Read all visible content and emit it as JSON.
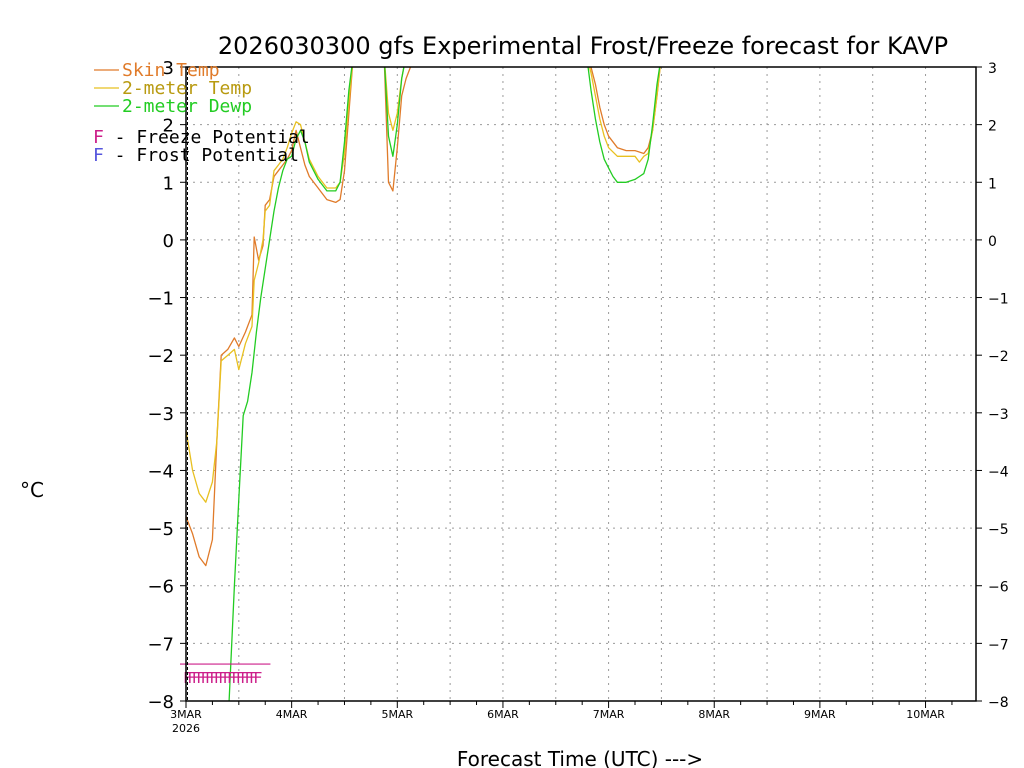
{
  "chart_data": {
    "type": "line",
    "title": "2026030300 gfs Experimental Frost/Freeze forecast for KAVP",
    "xlabel": "Forecast Time (UTC) --->",
    "ylabel": "°C",
    "ylim": [
      -8,
      3
    ],
    "yticks": [
      -8,
      -7,
      -6,
      -5,
      -4,
      -3,
      -2,
      -1,
      0,
      1,
      2,
      3
    ],
    "ytick_labels": [
      "−8",
      "−7",
      "−6",
      "−5",
      "−4",
      "−3",
      "−2",
      "−1",
      "0",
      "1",
      "2",
      "3"
    ],
    "xlim_hours": [
      0,
      180
    ],
    "xticks": [
      {
        "hour": 0,
        "label": "3MAR",
        "sublabel": "2026"
      },
      {
        "hour": 24,
        "label": "4MAR"
      },
      {
        "hour": 48,
        "label": "5MAR"
      },
      {
        "hour": 72,
        "label": "6MAR"
      },
      {
        "hour": 96,
        "label": "7MAR"
      },
      {
        "hour": 120,
        "label": "8MAR"
      },
      {
        "hour": 144,
        "label": "9MAR"
      },
      {
        "hour": 168,
        "label": "10MAR"
      }
    ],
    "grid": true,
    "legend": [
      {
        "label": "Skin Temp",
        "color": "#e07b2a"
      },
      {
        "label": "2-meter Temp",
        "color": "#e8c020"
      },
      {
        "label": "2-meter Dewp",
        "color": "#22cc22"
      }
    ],
    "markers_legend": [
      {
        "symbol": "F",
        "text": " - Freeze Potential",
        "color": "#cc1f8a"
      },
      {
        "symbol": "F",
        "text": " - Frost Potential",
        "color": "#5555dd"
      }
    ],
    "series": [
      {
        "name": "Skin Temp",
        "color": "#e07b2a",
        "points": [
          [
            0,
            -4.8
          ],
          [
            1.5,
            -5.1
          ],
          [
            3,
            -5.5
          ],
          [
            4.5,
            -5.65
          ],
          [
            6,
            -5.2
          ],
          [
            7,
            -3.5
          ],
          [
            8,
            -2.0
          ],
          [
            9.5,
            -1.9
          ],
          [
            11,
            -1.7
          ],
          [
            12,
            -1.85
          ],
          [
            13.5,
            -1.6
          ],
          [
            15,
            -1.3
          ],
          [
            15.5,
            0.05
          ],
          [
            16.5,
            -0.35
          ],
          [
            17.5,
            -0.1
          ],
          [
            18,
            0.6
          ],
          [
            19,
            0.7
          ],
          [
            20,
            1.1
          ],
          [
            21,
            1.2
          ],
          [
            22,
            1.3
          ],
          [
            23,
            1.4
          ],
          [
            24,
            1.55
          ],
          [
            25,
            1.9
          ],
          [
            26,
            1.6
          ],
          [
            27,
            1.3
          ],
          [
            28,
            1.1
          ],
          [
            30,
            0.9
          ],
          [
            32,
            0.7
          ],
          [
            34,
            0.65
          ],
          [
            35,
            0.7
          ],
          [
            36,
            1.2
          ],
          [
            37,
            2.2
          ],
          [
            38,
            3.2
          ],
          [
            45,
            3.2
          ],
          [
            46,
            1.0
          ],
          [
            47,
            0.85
          ],
          [
            48,
            1.6
          ],
          [
            49,
            2.5
          ],
          [
            50,
            2.8
          ],
          [
            51,
            3.0
          ],
          [
            52,
            3.2
          ],
          [
            91,
            3.2
          ],
          [
            92,
            3.0
          ],
          [
            93,
            2.7
          ],
          [
            94,
            2.3
          ],
          [
            95,
            2.0
          ],
          [
            96,
            1.8
          ],
          [
            98,
            1.6
          ],
          [
            100,
            1.55
          ],
          [
            102,
            1.55
          ],
          [
            104,
            1.5
          ],
          [
            105,
            1.6
          ],
          [
            106,
            1.9
          ],
          [
            107,
            2.5
          ],
          [
            108,
            3.2
          ]
        ]
      },
      {
        "name": "2-meter Temp",
        "color": "#e8c020",
        "points": [
          [
            0,
            -3.3
          ],
          [
            1.5,
            -4.0
          ],
          [
            3,
            -4.4
          ],
          [
            4.5,
            -4.55
          ],
          [
            6,
            -4.2
          ],
          [
            7,
            -3.5
          ],
          [
            8,
            -2.1
          ],
          [
            9.5,
            -2.0
          ],
          [
            11,
            -1.9
          ],
          [
            12,
            -2.25
          ],
          [
            13.5,
            -1.8
          ],
          [
            15,
            -1.5
          ],
          [
            15.5,
            -0.7
          ],
          [
            16.5,
            -0.4
          ],
          [
            17.5,
            0.0
          ],
          [
            18,
            0.5
          ],
          [
            19,
            0.6
          ],
          [
            20,
            1.2
          ],
          [
            21,
            1.3
          ],
          [
            22,
            1.4
          ],
          [
            23,
            1.6
          ],
          [
            24,
            1.85
          ],
          [
            25,
            2.05
          ],
          [
            26,
            2.0
          ],
          [
            27,
            1.7
          ],
          [
            28,
            1.4
          ],
          [
            30,
            1.1
          ],
          [
            32,
            0.9
          ],
          [
            34,
            0.9
          ],
          [
            35,
            1.0
          ],
          [
            36,
            1.5
          ],
          [
            37,
            2.4
          ],
          [
            38,
            3.2
          ],
          [
            45,
            3.2
          ],
          [
            46,
            2.2
          ],
          [
            47,
            1.9
          ],
          [
            48,
            2.2
          ],
          [
            49,
            2.8
          ],
          [
            50,
            3.2
          ],
          [
            91,
            3.2
          ],
          [
            92,
            2.9
          ],
          [
            93,
            2.5
          ],
          [
            94,
            2.1
          ],
          [
            95,
            1.8
          ],
          [
            96,
            1.6
          ],
          [
            98,
            1.45
          ],
          [
            100,
            1.45
          ],
          [
            102,
            1.45
          ],
          [
            103,
            1.35
          ],
          [
            104,
            1.45
          ],
          [
            105,
            1.5
          ],
          [
            106,
            1.9
          ],
          [
            107,
            2.5
          ],
          [
            108,
            3.2
          ]
        ]
      },
      {
        "name": "2-meter Dewp",
        "color": "#22cc22",
        "points": [
          [
            9.8,
            -8.0
          ],
          [
            11,
            -6.0
          ],
          [
            12,
            -4.5
          ],
          [
            13,
            -3.05
          ],
          [
            14,
            -2.8
          ],
          [
            15,
            -2.3
          ],
          [
            16,
            -1.6
          ],
          [
            17,
            -1.0
          ],
          [
            18,
            -0.5
          ],
          [
            19,
            0.0
          ],
          [
            20,
            0.5
          ],
          [
            21,
            0.9
          ],
          [
            22,
            1.2
          ],
          [
            23,
            1.4
          ],
          [
            24,
            1.45
          ],
          [
            25,
            1.75
          ],
          [
            26,
            1.9
          ],
          [
            27,
            1.7
          ],
          [
            28,
            1.35
          ],
          [
            30,
            1.05
          ],
          [
            32,
            0.85
          ],
          [
            34,
            0.85
          ],
          [
            35,
            1.0
          ],
          [
            36,
            1.7
          ],
          [
            37,
            2.6
          ],
          [
            38,
            3.2
          ],
          [
            45,
            3.2
          ],
          [
            46,
            1.8
          ],
          [
            47,
            1.45
          ],
          [
            48,
            2.0
          ],
          [
            49,
            2.8
          ],
          [
            50,
            3.2
          ],
          [
            91,
            3.2
          ],
          [
            92,
            2.6
          ],
          [
            93,
            2.1
          ],
          [
            94,
            1.7
          ],
          [
            95,
            1.4
          ],
          [
            96,
            1.25
          ],
          [
            97,
            1.1
          ],
          [
            98,
            1.0
          ],
          [
            100,
            1.0
          ],
          [
            102,
            1.05
          ],
          [
            103,
            1.1
          ],
          [
            104,
            1.15
          ],
          [
            105,
            1.4
          ],
          [
            106,
            2.0
          ],
          [
            107,
            2.7
          ],
          [
            108,
            3.2
          ]
        ]
      }
    ],
    "freeze_markers": {
      "color": "#cc1f8a",
      "symbol": "F",
      "y": -7.55,
      "hours": [
        0,
        1,
        2,
        3,
        4,
        5,
        6,
        7,
        8,
        9,
        10,
        11,
        12,
        13,
        14,
        15,
        16
      ]
    }
  }
}
